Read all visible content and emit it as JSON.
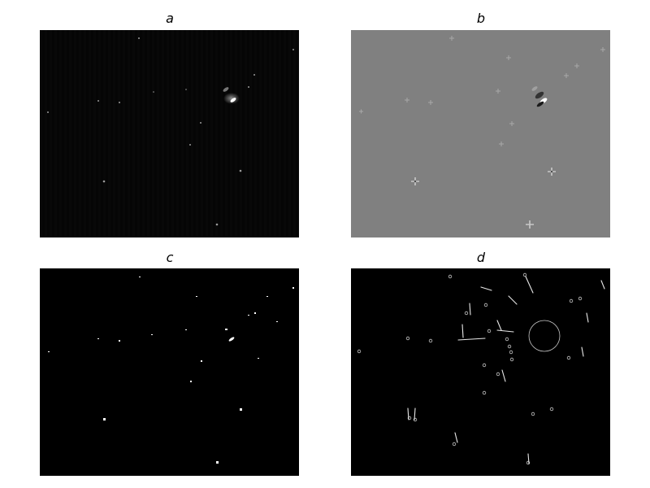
{
  "panels": [
    {
      "id": "a",
      "label": "a"
    },
    {
      "id": "b",
      "label": "b"
    },
    {
      "id": "c",
      "label": "c"
    },
    {
      "id": "d",
      "label": "d"
    }
  ]
}
